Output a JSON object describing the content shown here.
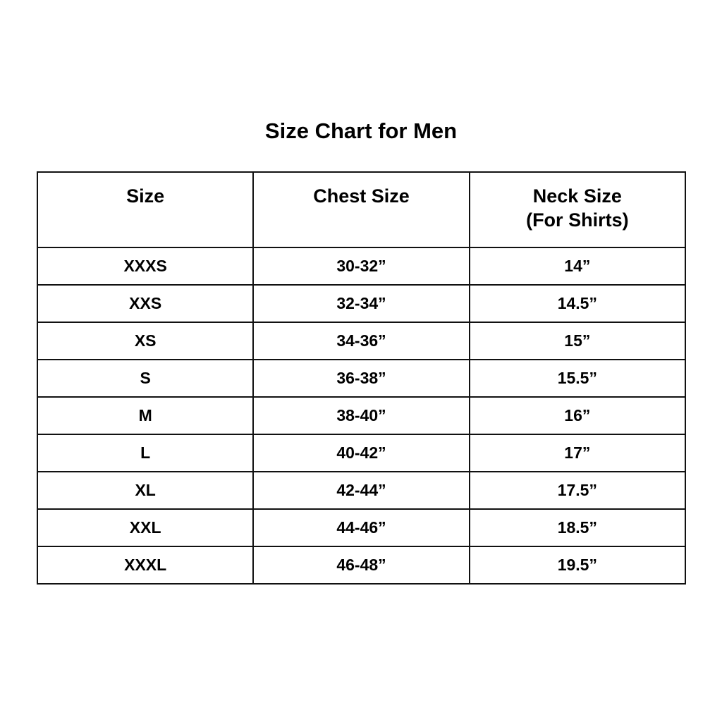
{
  "title": "Size Chart for Men",
  "headers": [
    "Size",
    "Chest Size",
    "Neck Size",
    "(For Shirts)"
  ],
  "rows": [
    {
      "size": "XXXS",
      "chest": "30-32”",
      "neck": "14”"
    },
    {
      "size": "XXS",
      "chest": "32-34”",
      "neck": "14.5”"
    },
    {
      "size": "XS",
      "chest": "34-36”",
      "neck": "15”"
    },
    {
      "size": "S",
      "chest": "36-38”",
      "neck": "15.5”"
    },
    {
      "size": "M",
      "chest": "38-40”",
      "neck": "16”"
    },
    {
      "size": "L",
      "chest": "40-42”",
      "neck": "17”"
    },
    {
      "size": "XL",
      "chest": "42-44”",
      "neck": "17.5”"
    },
    {
      "size": "XXL",
      "chest": "44-46”",
      "neck": "18.5”"
    },
    {
      "size": "XXXL",
      "chest": "46-48”",
      "neck": "19.5”"
    }
  ]
}
